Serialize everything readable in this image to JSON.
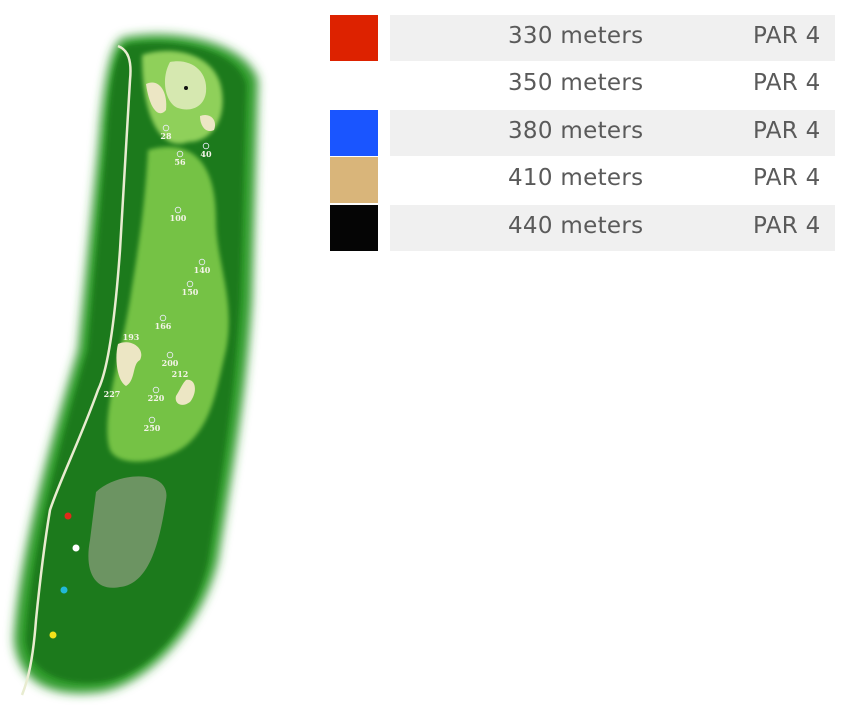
{
  "tees": [
    {
      "length": "330 meters",
      "par": "PAR 4",
      "color": "#dd2200",
      "row_bg": "#f0f0f0"
    },
    {
      "length": "350 meters",
      "par": "PAR 4",
      "color": "#ffffff",
      "row_bg": "#ffffff"
    },
    {
      "length": "380 meters",
      "par": "PAR 4",
      "color": "#1a55ff",
      "row_bg": "#f0f0f0"
    },
    {
      "length": "410 meters",
      "par": "PAR 4",
      "color": "#d9b57a",
      "row_bg": "#ffffff"
    },
    {
      "length": "440 meters",
      "par": "PAR 4",
      "color": "#050505",
      "row_bg": "#f0f0f0"
    }
  ],
  "hole_map": {
    "distance_markers": [
      {
        "label": "28",
        "marker": true
      },
      {
        "label": "40",
        "marker": true
      },
      {
        "label": "56",
        "marker": true
      },
      {
        "label": "100",
        "marker": true
      },
      {
        "label": "140",
        "marker": true
      },
      {
        "label": "150",
        "marker": true
      },
      {
        "label": "166",
        "marker": true
      },
      {
        "label": "193",
        "marker": false
      },
      {
        "label": "200",
        "marker": true
      },
      {
        "label": "212",
        "marker": false
      },
      {
        "label": "227",
        "marker": false
      },
      {
        "label": "220",
        "marker": true
      },
      {
        "label": "250",
        "marker": true
      }
    ],
    "tee_markers": [
      {
        "color": "#e02a1a"
      },
      {
        "color": "#ffffff"
      },
      {
        "color": "#22b8d8"
      },
      {
        "color": "#f2e21a"
      }
    ]
  }
}
